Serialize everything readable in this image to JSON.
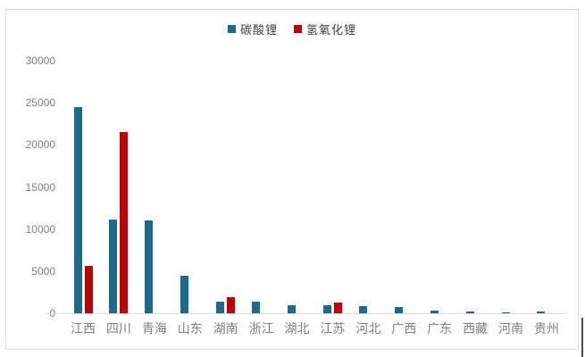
{
  "chart_data": {
    "type": "bar",
    "title": "",
    "xlabel": "",
    "ylabel": "",
    "grid": "off",
    "legend_position": "top-center",
    "categories": [
      "江西",
      "四川",
      "青海",
      "山东",
      "湖南",
      "浙江",
      "湖北",
      "江苏",
      "河北",
      "广西",
      "广东",
      "西藏",
      "河南",
      "贵州"
    ],
    "series": [
      {
        "name": "碳酸锂",
        "color": "#1E6A8D",
        "values": [
          24500,
          11100,
          11000,
          4400,
          1400,
          1400,
          1000,
          950,
          850,
          700,
          350,
          200,
          150,
          200
        ]
      },
      {
        "name": "氢氧化锂",
        "color": "#C00000",
        "values": [
          5600,
          21500,
          0,
          0,
          1900,
          0,
          0,
          1300,
          0,
          0,
          0,
          0,
          0,
          0
        ]
      }
    ],
    "ylim": [
      0,
      30000
    ],
    "ytick_step": 5000,
    "ytick_labels": [
      "0",
      "5000",
      "10000",
      "15000",
      "20000",
      "25000",
      "30000"
    ]
  },
  "colors": {
    "frame_border": "#D9D9D9",
    "axis_line": "#D9D9D9",
    "tick_label": "#808080",
    "category_label": "#808080",
    "legend_text": "#404040",
    "cursor_line": "#4A4A4A",
    "background": "#FFFFFF"
  }
}
